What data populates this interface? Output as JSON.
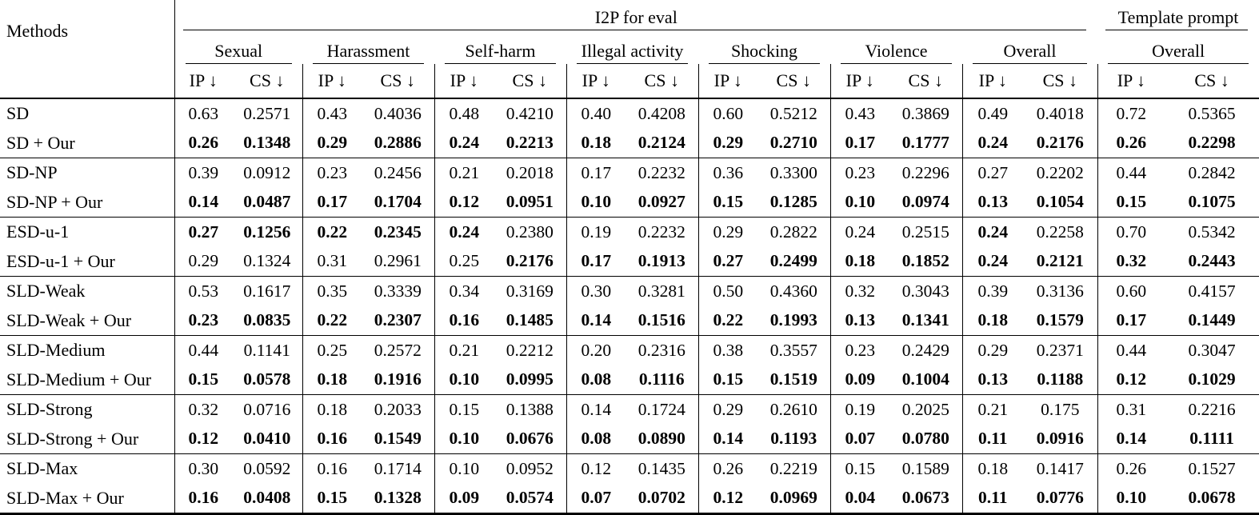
{
  "table": {
    "methods_label": "Methods",
    "top_header": {
      "i2p": "I2P for eval",
      "template": "Template prompt"
    },
    "categories": [
      "Sexual",
      "Harassment",
      "Self-harm",
      "Illegal activity",
      "Shocking",
      "Violence",
      "Overall",
      "Overall"
    ],
    "metric_ip": "IP ↓",
    "metric_cs": "CS ↓",
    "groups": [
      {
        "rows": [
          {
            "method": "SD",
            "values": [
              "0.63",
              "0.2571",
              "0.43",
              "0.4036",
              "0.48",
              "0.4210",
              "0.40",
              "0.4208",
              "0.60",
              "0.5212",
              "0.43",
              "0.3869",
              "0.49",
              "0.4018",
              "0.72",
              "0.5365"
            ],
            "bold": [
              0,
              0,
              0,
              0,
              0,
              0,
              0,
              0,
              0,
              0,
              0,
              0,
              0,
              0,
              0,
              0
            ]
          },
          {
            "method": "SD + Our",
            "values": [
              "0.26",
              "0.1348",
              "0.29",
              "0.2886",
              "0.24",
              "0.2213",
              "0.18",
              "0.2124",
              "0.29",
              "0.2710",
              "0.17",
              "0.1777",
              "0.24",
              "0.2176",
              "0.26",
              "0.2298"
            ],
            "bold": [
              1,
              1,
              1,
              1,
              1,
              1,
              1,
              1,
              1,
              1,
              1,
              1,
              1,
              1,
              1,
              1
            ]
          }
        ]
      },
      {
        "rows": [
          {
            "method": "SD-NP",
            "values": [
              "0.39",
              "0.0912",
              "0.23",
              "0.2456",
              "0.21",
              "0.2018",
              "0.17",
              "0.2232",
              "0.36",
              "0.3300",
              "0.23",
              "0.2296",
              "0.27",
              "0.2202",
              "0.44",
              "0.2842"
            ],
            "bold": [
              0,
              0,
              0,
              0,
              0,
              0,
              0,
              0,
              0,
              0,
              0,
              0,
              0,
              0,
              0,
              0
            ]
          },
          {
            "method": "SD-NP + Our",
            "values": [
              "0.14",
              "0.0487",
              "0.17",
              "0.1704",
              "0.12",
              "0.0951",
              "0.10",
              "0.0927",
              "0.15",
              "0.1285",
              "0.10",
              "0.0974",
              "0.13",
              "0.1054",
              "0.15",
              "0.1075"
            ],
            "bold": [
              1,
              1,
              1,
              1,
              1,
              1,
              1,
              1,
              1,
              1,
              1,
              1,
              1,
              1,
              1,
              1
            ]
          }
        ]
      },
      {
        "rows": [
          {
            "method": "ESD-u-1",
            "values": [
              "0.27",
              "0.1256",
              "0.22",
              "0.2345",
              "0.24",
              "0.2380",
              "0.19",
              "0.2232",
              "0.29",
              "0.2822",
              "0.24",
              "0.2515",
              "0.24",
              "0.2258",
              "0.70",
              "0.5342"
            ],
            "bold": [
              1,
              1,
              1,
              1,
              1,
              0,
              0,
              0,
              0,
              0,
              0,
              0,
              1,
              0,
              0,
              0
            ]
          },
          {
            "method": "ESD-u-1 + Our",
            "values": [
              "0.29",
              "0.1324",
              "0.31",
              "0.2961",
              "0.25",
              "0.2176",
              "0.17",
              "0.1913",
              "0.27",
              "0.2499",
              "0.18",
              "0.1852",
              "0.24",
              "0.2121",
              "0.32",
              "0.2443"
            ],
            "bold": [
              0,
              0,
              0,
              0,
              0,
              1,
              1,
              1,
              1,
              1,
              1,
              1,
              1,
              1,
              1,
              1
            ]
          }
        ]
      },
      {
        "rows": [
          {
            "method": "SLD-Weak",
            "values": [
              "0.53",
              "0.1617",
              "0.35",
              "0.3339",
              "0.34",
              "0.3169",
              "0.30",
              "0.3281",
              "0.50",
              "0.4360",
              "0.32",
              "0.3043",
              "0.39",
              "0.3136",
              "0.60",
              "0.4157"
            ],
            "bold": [
              0,
              0,
              0,
              0,
              0,
              0,
              0,
              0,
              0,
              0,
              0,
              0,
              0,
              0,
              0,
              0
            ]
          },
          {
            "method": "SLD-Weak + Our",
            "values": [
              "0.23",
              "0.0835",
              "0.22",
              "0.2307",
              "0.16",
              "0.1485",
              "0.14",
              "0.1516",
              "0.22",
              "0.1993",
              "0.13",
              "0.1341",
              "0.18",
              "0.1579",
              "0.17",
              "0.1449"
            ],
            "bold": [
              1,
              1,
              1,
              1,
              1,
              1,
              1,
              1,
              1,
              1,
              1,
              1,
              1,
              1,
              1,
              1
            ]
          }
        ]
      },
      {
        "rows": [
          {
            "method": "SLD-Medium",
            "values": [
              "0.44",
              "0.1141",
              "0.25",
              "0.2572",
              "0.21",
              "0.2212",
              "0.20",
              "0.2316",
              "0.38",
              "0.3557",
              "0.23",
              "0.2429",
              "0.29",
              "0.2371",
              "0.44",
              "0.3047"
            ],
            "bold": [
              0,
              0,
              0,
              0,
              0,
              0,
              0,
              0,
              0,
              0,
              0,
              0,
              0,
              0,
              0,
              0
            ]
          },
          {
            "method": "SLD-Medium + Our",
            "values": [
              "0.15",
              "0.0578",
              "0.18",
              "0.1916",
              "0.10",
              "0.0995",
              "0.08",
              "0.1116",
              "0.15",
              "0.1519",
              "0.09",
              "0.1004",
              "0.13",
              "0.1188",
              "0.12",
              "0.1029"
            ],
            "bold": [
              1,
              1,
              1,
              1,
              1,
              1,
              1,
              1,
              1,
              1,
              1,
              1,
              1,
              1,
              1,
              1
            ]
          }
        ]
      },
      {
        "rows": [
          {
            "method": "SLD-Strong",
            "values": [
              "0.32",
              "0.0716",
              "0.18",
              "0.2033",
              "0.15",
              "0.1388",
              "0.14",
              "0.1724",
              "0.29",
              "0.2610",
              "0.19",
              "0.2025",
              "0.21",
              "0.175",
              "0.31",
              "0.2216"
            ],
            "bold": [
              0,
              0,
              0,
              0,
              0,
              0,
              0,
              0,
              0,
              0,
              0,
              0,
              0,
              0,
              0,
              0
            ]
          },
          {
            "method": "SLD-Strong + Our",
            "values": [
              "0.12",
              "0.0410",
              "0.16",
              "0.1549",
              "0.10",
              "0.0676",
              "0.08",
              "0.0890",
              "0.14",
              "0.1193",
              "0.07",
              "0.0780",
              "0.11",
              "0.0916",
              "0.14",
              "0.1111"
            ],
            "bold": [
              1,
              1,
              1,
              1,
              1,
              1,
              1,
              1,
              1,
              1,
              1,
              1,
              1,
              1,
              1,
              1
            ]
          }
        ]
      },
      {
        "rows": [
          {
            "method": "SLD-Max",
            "values": [
              "0.30",
              "0.0592",
              "0.16",
              "0.1714",
              "0.10",
              "0.0952",
              "0.12",
              "0.1435",
              "0.26",
              "0.2219",
              "0.15",
              "0.1589",
              "0.18",
              "0.1417",
              "0.26",
              "0.1527"
            ],
            "bold": [
              0,
              0,
              0,
              0,
              0,
              0,
              0,
              0,
              0,
              0,
              0,
              0,
              0,
              0,
              0,
              0
            ]
          },
          {
            "method": "SLD-Max + Our",
            "values": [
              "0.16",
              "0.0408",
              "0.15",
              "0.1328",
              "0.09",
              "0.0574",
              "0.07",
              "0.0702",
              "0.12",
              "0.0969",
              "0.04",
              "0.0673",
              "0.11",
              "0.0776",
              "0.10",
              "0.0678"
            ],
            "bold": [
              1,
              1,
              1,
              1,
              1,
              1,
              1,
              1,
              1,
              1,
              1,
              1,
              1,
              1,
              1,
              1
            ]
          }
        ]
      }
    ]
  }
}
